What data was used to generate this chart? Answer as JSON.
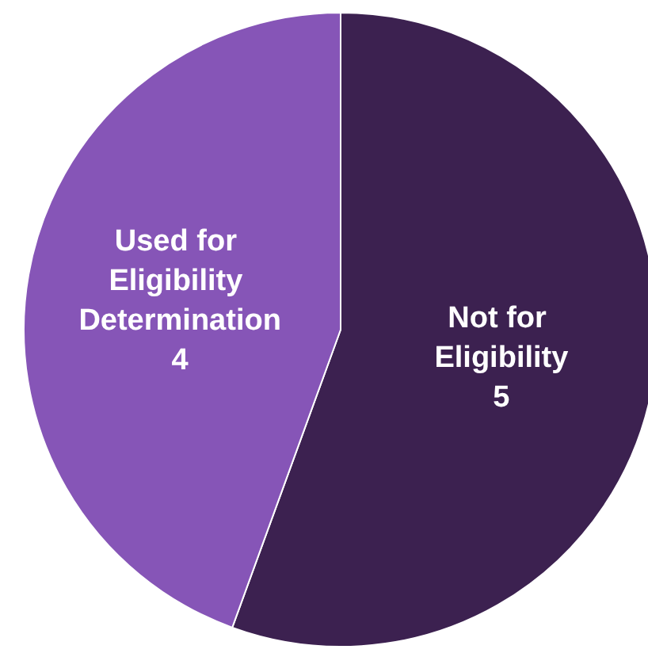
{
  "chart_data": {
    "type": "pie",
    "categories": [
      "Not for Eligibility",
      "Used for Eligibility Determination"
    ],
    "values": [
      5,
      4
    ],
    "colors": [
      "#3c2150",
      "#8655b7"
    ],
    "data_labels": true,
    "legend": false
  }
}
